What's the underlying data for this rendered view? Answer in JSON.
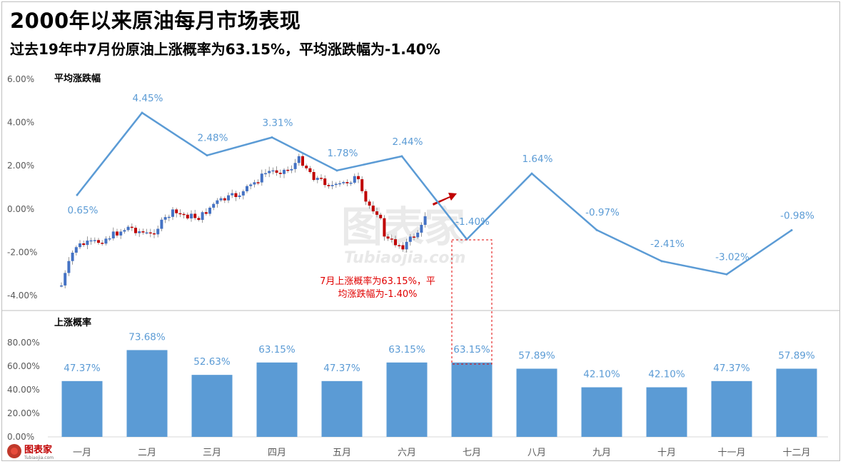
{
  "header": {
    "title": "2000年以来原油每月市场表现",
    "subtitle": "过去19年中7月份原油上涨概率为63.15%，平均涨跌幅为-1.40%"
  },
  "chart_data": [
    {
      "type": "line",
      "panel_label": "平均涨跌幅",
      "categories": [
        "一月",
        "二月",
        "三月",
        "四月",
        "五月",
        "六月",
        "七月",
        "八月",
        "九月",
        "十月",
        "十一月",
        "十二月"
      ],
      "values": [
        0.65,
        4.45,
        2.48,
        3.31,
        1.78,
        2.44,
        -1.4,
        1.64,
        -0.97,
        -2.41,
        -3.02,
        -0.98
      ],
      "data_labels": [
        "0.65%",
        "4.45%",
        "2.48%",
        "3.31%",
        "1.78%",
        "2.44%",
        "-1.40%",
        "1.64%",
        "-0.97%",
        "-2.41%",
        "-3.02%",
        "-0.98%"
      ],
      "yticks": [
        "6.00%",
        "4.00%",
        "2.00%",
        "0.00%",
        "-2.00%",
        "-4.00%"
      ],
      "ylim": [
        -4,
        6
      ],
      "color": "#5b9bd5",
      "annotation": [
        "7月上涨概率为63.15%，平",
        "均涨跌幅为-1.40%"
      ],
      "annotation_color": "#e00000"
    },
    {
      "type": "bar",
      "panel_label": "上涨概率",
      "categories": [
        "一月",
        "二月",
        "三月",
        "四月",
        "五月",
        "六月",
        "七月",
        "八月",
        "九月",
        "十月",
        "十一月",
        "十二月"
      ],
      "values": [
        47.37,
        73.68,
        52.63,
        63.15,
        47.37,
        63.15,
        63.15,
        57.89,
        42.1,
        42.1,
        47.37,
        57.89
      ],
      "data_labels": [
        "47.37%",
        "73.68%",
        "52.63%",
        "63.15%",
        "47.37%",
        "63.15%",
        "63.15%",
        "57.89%",
        "42.10%",
        "42.10%",
        "47.37%",
        "57.89%"
      ],
      "yticks": [
        "80.00%",
        "60.00%",
        "40.00%",
        "20.00%",
        "0.00%"
      ],
      "ylim": [
        0,
        80
      ],
      "color": "#5b9bd5"
    }
  ],
  "watermark": {
    "main": "图表家",
    "sub": "Tubiaojia.com"
  },
  "logo": {
    "text": "图表家",
    "sub": "Tubiaojia.com",
    "icon": "rose-icon"
  },
  "colors": {
    "accent": "#5b9bd5",
    "candle_up": "#4472c4",
    "candle_down": "#c00000",
    "annotation": "#e00000",
    "arrow": "#c00000"
  }
}
